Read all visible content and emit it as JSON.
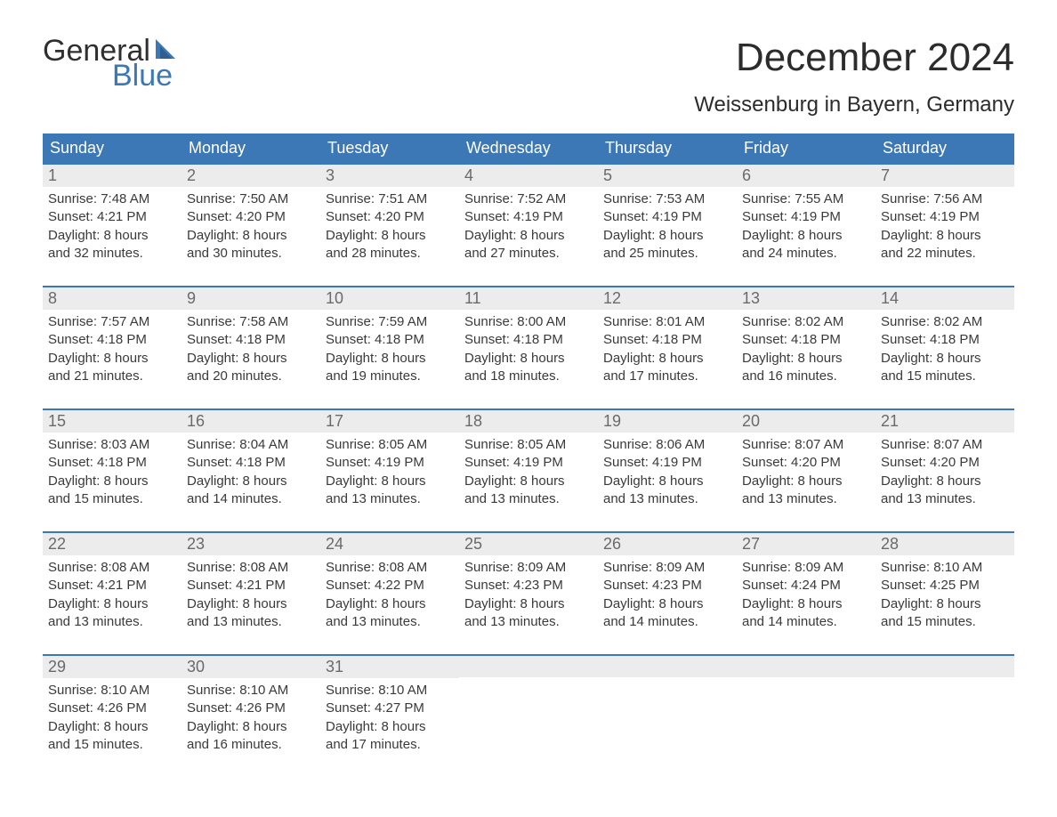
{
  "logo": {
    "word1": "General",
    "word2": "Blue",
    "sail_color": "#3b78b5",
    "text_color": "#2f2f2f"
  },
  "title": "December 2024",
  "location": "Weissenburg in Bayern, Germany",
  "colors": {
    "header_bg": "#3b78b5",
    "header_text": "#ffffff",
    "daynum_bg": "#ececec",
    "daynum_text": "#6a6a6a",
    "body_text": "#3a3a3a",
    "week_border": "#3b78b5",
    "page_bg": "#ffffff"
  },
  "fonts": {
    "title_size_pt": 33,
    "location_size_pt": 18,
    "header_size_pt": 14,
    "daynum_size_pt": 14,
    "body_size_pt": 11
  },
  "day_headers": [
    "Sunday",
    "Monday",
    "Tuesday",
    "Wednesday",
    "Thursday",
    "Friday",
    "Saturday"
  ],
  "weeks": [
    [
      {
        "n": "1",
        "sunrise": "Sunrise: 7:48 AM",
        "sunset": "Sunset: 4:21 PM",
        "d1": "Daylight: 8 hours",
        "d2": "and 32 minutes."
      },
      {
        "n": "2",
        "sunrise": "Sunrise: 7:50 AM",
        "sunset": "Sunset: 4:20 PM",
        "d1": "Daylight: 8 hours",
        "d2": "and 30 minutes."
      },
      {
        "n": "3",
        "sunrise": "Sunrise: 7:51 AM",
        "sunset": "Sunset: 4:20 PM",
        "d1": "Daylight: 8 hours",
        "d2": "and 28 minutes."
      },
      {
        "n": "4",
        "sunrise": "Sunrise: 7:52 AM",
        "sunset": "Sunset: 4:19 PM",
        "d1": "Daylight: 8 hours",
        "d2": "and 27 minutes."
      },
      {
        "n": "5",
        "sunrise": "Sunrise: 7:53 AM",
        "sunset": "Sunset: 4:19 PM",
        "d1": "Daylight: 8 hours",
        "d2": "and 25 minutes."
      },
      {
        "n": "6",
        "sunrise": "Sunrise: 7:55 AM",
        "sunset": "Sunset: 4:19 PM",
        "d1": "Daylight: 8 hours",
        "d2": "and 24 minutes."
      },
      {
        "n": "7",
        "sunrise": "Sunrise: 7:56 AM",
        "sunset": "Sunset: 4:19 PM",
        "d1": "Daylight: 8 hours",
        "d2": "and 22 minutes."
      }
    ],
    [
      {
        "n": "8",
        "sunrise": "Sunrise: 7:57 AM",
        "sunset": "Sunset: 4:18 PM",
        "d1": "Daylight: 8 hours",
        "d2": "and 21 minutes."
      },
      {
        "n": "9",
        "sunrise": "Sunrise: 7:58 AM",
        "sunset": "Sunset: 4:18 PM",
        "d1": "Daylight: 8 hours",
        "d2": "and 20 minutes."
      },
      {
        "n": "10",
        "sunrise": "Sunrise: 7:59 AM",
        "sunset": "Sunset: 4:18 PM",
        "d1": "Daylight: 8 hours",
        "d2": "and 19 minutes."
      },
      {
        "n": "11",
        "sunrise": "Sunrise: 8:00 AM",
        "sunset": "Sunset: 4:18 PM",
        "d1": "Daylight: 8 hours",
        "d2": "and 18 minutes."
      },
      {
        "n": "12",
        "sunrise": "Sunrise: 8:01 AM",
        "sunset": "Sunset: 4:18 PM",
        "d1": "Daylight: 8 hours",
        "d2": "and 17 minutes."
      },
      {
        "n": "13",
        "sunrise": "Sunrise: 8:02 AM",
        "sunset": "Sunset: 4:18 PM",
        "d1": "Daylight: 8 hours",
        "d2": "and 16 minutes."
      },
      {
        "n": "14",
        "sunrise": "Sunrise: 8:02 AM",
        "sunset": "Sunset: 4:18 PM",
        "d1": "Daylight: 8 hours",
        "d2": "and 15 minutes."
      }
    ],
    [
      {
        "n": "15",
        "sunrise": "Sunrise: 8:03 AM",
        "sunset": "Sunset: 4:18 PM",
        "d1": "Daylight: 8 hours",
        "d2": "and 15 minutes."
      },
      {
        "n": "16",
        "sunrise": "Sunrise: 8:04 AM",
        "sunset": "Sunset: 4:18 PM",
        "d1": "Daylight: 8 hours",
        "d2": "and 14 minutes."
      },
      {
        "n": "17",
        "sunrise": "Sunrise: 8:05 AM",
        "sunset": "Sunset: 4:19 PM",
        "d1": "Daylight: 8 hours",
        "d2": "and 13 minutes."
      },
      {
        "n": "18",
        "sunrise": "Sunrise: 8:05 AM",
        "sunset": "Sunset: 4:19 PM",
        "d1": "Daylight: 8 hours",
        "d2": "and 13 minutes."
      },
      {
        "n": "19",
        "sunrise": "Sunrise: 8:06 AM",
        "sunset": "Sunset: 4:19 PM",
        "d1": "Daylight: 8 hours",
        "d2": "and 13 minutes."
      },
      {
        "n": "20",
        "sunrise": "Sunrise: 8:07 AM",
        "sunset": "Sunset: 4:20 PM",
        "d1": "Daylight: 8 hours",
        "d2": "and 13 minutes."
      },
      {
        "n": "21",
        "sunrise": "Sunrise: 8:07 AM",
        "sunset": "Sunset: 4:20 PM",
        "d1": "Daylight: 8 hours",
        "d2": "and 13 minutes."
      }
    ],
    [
      {
        "n": "22",
        "sunrise": "Sunrise: 8:08 AM",
        "sunset": "Sunset: 4:21 PM",
        "d1": "Daylight: 8 hours",
        "d2": "and 13 minutes."
      },
      {
        "n": "23",
        "sunrise": "Sunrise: 8:08 AM",
        "sunset": "Sunset: 4:21 PM",
        "d1": "Daylight: 8 hours",
        "d2": "and 13 minutes."
      },
      {
        "n": "24",
        "sunrise": "Sunrise: 8:08 AM",
        "sunset": "Sunset: 4:22 PM",
        "d1": "Daylight: 8 hours",
        "d2": "and 13 minutes."
      },
      {
        "n": "25",
        "sunrise": "Sunrise: 8:09 AM",
        "sunset": "Sunset: 4:23 PM",
        "d1": "Daylight: 8 hours",
        "d2": "and 13 minutes."
      },
      {
        "n": "26",
        "sunrise": "Sunrise: 8:09 AM",
        "sunset": "Sunset: 4:23 PM",
        "d1": "Daylight: 8 hours",
        "d2": "and 14 minutes."
      },
      {
        "n": "27",
        "sunrise": "Sunrise: 8:09 AM",
        "sunset": "Sunset: 4:24 PM",
        "d1": "Daylight: 8 hours",
        "d2": "and 14 minutes."
      },
      {
        "n": "28",
        "sunrise": "Sunrise: 8:10 AM",
        "sunset": "Sunset: 4:25 PM",
        "d1": "Daylight: 8 hours",
        "d2": "and 15 minutes."
      }
    ],
    [
      {
        "n": "29",
        "sunrise": "Sunrise: 8:10 AM",
        "sunset": "Sunset: 4:26 PM",
        "d1": "Daylight: 8 hours",
        "d2": "and 15 minutes."
      },
      {
        "n": "30",
        "sunrise": "Sunrise: 8:10 AM",
        "sunset": "Sunset: 4:26 PM",
        "d1": "Daylight: 8 hours",
        "d2": "and 16 minutes."
      },
      {
        "n": "31",
        "sunrise": "Sunrise: 8:10 AM",
        "sunset": "Sunset: 4:27 PM",
        "d1": "Daylight: 8 hours",
        "d2": "and 17 minutes."
      },
      {
        "empty": true
      },
      {
        "empty": true
      },
      {
        "empty": true
      },
      {
        "empty": true
      }
    ]
  ]
}
